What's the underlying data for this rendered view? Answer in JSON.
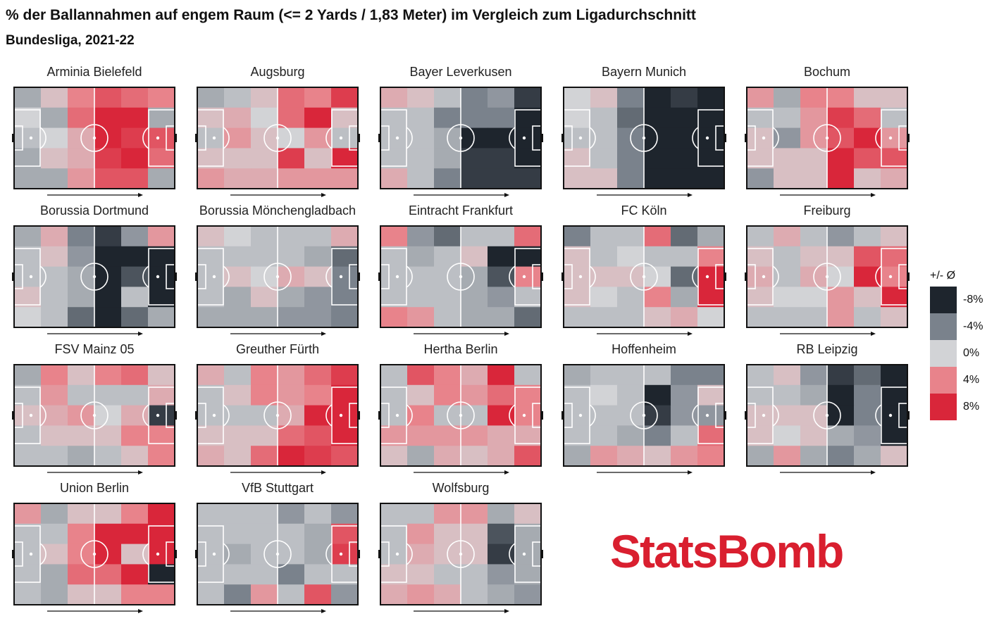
{
  "title": "% der Ballannahmen auf engem Raum (<= 2 Yards / 1,83 Meter) im Vergleich zum Ligadurchschnitt",
  "subtitle": "Bundesliga, 2021-22",
  "legend": {
    "title": "+/- Ø",
    "items": [
      {
        "label": "-8%",
        "value": -8,
        "color": "#1e252d"
      },
      {
        "label": "-4%",
        "value": -4,
        "color": "#7a828c"
      },
      {
        "label": "0%",
        "value": 0,
        "color": "#d2d3d6"
      },
      {
        "label": "4%",
        "value": 4,
        "color": "#e8838b"
      },
      {
        "label": "8%",
        "value": 8,
        "color": "#d9263a"
      }
    ]
  },
  "logo_text": "StatsBomb",
  "chart_data": {
    "type": "heatmap",
    "grid": {
      "columns": 6,
      "rows": 5
    },
    "value_unit": "percentage points vs league average",
    "teams": [
      {
        "name": "Arminia Bielefeld",
        "values": [
          [
            -2,
            1,
            4,
            6,
            5,
            4
          ],
          [
            0,
            -2,
            5,
            8,
            8,
            -2
          ],
          [
            -1,
            0,
            2,
            8,
            7,
            6
          ],
          [
            -2,
            1,
            2,
            7,
            8,
            5
          ],
          [
            -2,
            -2,
            3,
            6,
            6,
            -2
          ]
        ]
      },
      {
        "name": "Augsburg",
        "values": [
          [
            -2,
            -1,
            1,
            5,
            4,
            7
          ],
          [
            1,
            2,
            0,
            5,
            8,
            1
          ],
          [
            -1,
            3,
            1,
            0,
            3,
            -1
          ],
          [
            1,
            1,
            1,
            7,
            1,
            8
          ],
          [
            3,
            2,
            2,
            3,
            3,
            3
          ]
        ]
      },
      {
        "name": "Bayer Leverkusen",
        "values": [
          [
            2,
            1,
            -1,
            -4,
            -3,
            -7
          ],
          [
            -1,
            -1,
            -4,
            -4,
            -4,
            -9
          ],
          [
            -1,
            -1,
            -2,
            -8,
            -9,
            -9
          ],
          [
            -1,
            -1,
            -2,
            -7,
            -7,
            -9
          ],
          [
            2,
            -1,
            -4,
            -7,
            -7,
            -7
          ]
        ]
      },
      {
        "name": "Bayern Munich",
        "values": [
          [
            0,
            1,
            -4,
            -9,
            -7,
            -9
          ],
          [
            0,
            -1,
            -5,
            -9,
            -9,
            -9
          ],
          [
            -1,
            -1,
            -4,
            -9,
            -9,
            -9
          ],
          [
            1,
            -1,
            -4,
            -9,
            -9,
            -9
          ],
          [
            1,
            1,
            -4,
            -9,
            -9,
            -9
          ]
        ]
      },
      {
        "name": "Bochum",
        "values": [
          [
            3,
            -2,
            4,
            4,
            1,
            1
          ],
          [
            -1,
            -1,
            3,
            7,
            5,
            -1
          ],
          [
            1,
            -3,
            3,
            6,
            8,
            3
          ],
          [
            1,
            1,
            1,
            8,
            6,
            6
          ],
          [
            -3,
            1,
            1,
            8,
            1,
            2
          ]
        ]
      },
      {
        "name": "Borussia Dortmund",
        "values": [
          [
            -2,
            2,
            -4,
            -7,
            -3,
            3
          ],
          [
            -1,
            1,
            -3,
            -9,
            -9,
            -9
          ],
          [
            -1,
            -1,
            -2,
            -9,
            -6,
            -8
          ],
          [
            1,
            -1,
            -2,
            -9,
            -1,
            -9
          ],
          [
            0,
            -1,
            -5,
            -9,
            -5,
            -2
          ]
        ]
      },
      {
        "name": "Borussia Mönchengladbach",
        "values": [
          [
            1,
            0,
            -1,
            -1,
            -1,
            2
          ],
          [
            -1,
            -1,
            -1,
            -1,
            -2,
            -5
          ],
          [
            -1,
            1,
            0,
            2,
            1,
            -4
          ],
          [
            -1,
            -2,
            1,
            -2,
            -3,
            -4
          ],
          [
            -2,
            -2,
            -2,
            -3,
            -3,
            -4
          ]
        ]
      },
      {
        "name": "Eintracht Frankfurt",
        "values": [
          [
            4,
            -3,
            -5,
            -1,
            -1,
            5
          ],
          [
            -1,
            -2,
            -1,
            1,
            -9,
            -9
          ],
          [
            -1,
            -1,
            -1,
            -2,
            -6,
            4
          ],
          [
            -1,
            -1,
            -1,
            -2,
            -3,
            -1
          ],
          [
            4,
            3,
            -1,
            -2,
            -2,
            -5
          ]
        ]
      },
      {
        "name": "FC Köln",
        "values": [
          [
            -4,
            -1,
            -1,
            5,
            -5,
            -2
          ],
          [
            1,
            -1,
            0,
            -1,
            -1,
            4
          ],
          [
            1,
            1,
            1,
            0,
            -5,
            8
          ],
          [
            1,
            0,
            -1,
            4,
            -2,
            8
          ],
          [
            -1,
            -1,
            -1,
            1,
            2,
            0
          ]
        ]
      },
      {
        "name": "Freiburg",
        "values": [
          [
            -1,
            2,
            -1,
            -3,
            -1,
            1
          ],
          [
            1,
            -1,
            1,
            1,
            6,
            5
          ],
          [
            2,
            -1,
            2,
            0,
            8,
            4
          ],
          [
            1,
            0,
            0,
            3,
            1,
            8
          ],
          [
            -1,
            -1,
            -1,
            3,
            -1,
            1
          ]
        ]
      },
      {
        "name": "FSV Mainz 05",
        "values": [
          [
            -2,
            4,
            1,
            4,
            5,
            1
          ],
          [
            -1,
            3,
            -1,
            -1,
            -1,
            2
          ],
          [
            1,
            2,
            3,
            0,
            2,
            -7
          ],
          [
            -1,
            1,
            1,
            1,
            4,
            4
          ],
          [
            -1,
            -1,
            -2,
            -1,
            1,
            4
          ]
        ]
      },
      {
        "name": "Greuther Fürth",
        "values": [
          [
            2,
            -1,
            4,
            3,
            5,
            7
          ],
          [
            -1,
            1,
            4,
            3,
            4,
            8
          ],
          [
            -1,
            -1,
            -1,
            2,
            8,
            8
          ],
          [
            1,
            1,
            1,
            5,
            6,
            8
          ],
          [
            2,
            1,
            5,
            8,
            7,
            6
          ]
        ]
      },
      {
        "name": "Hertha Berlin",
        "values": [
          [
            -1,
            6,
            4,
            2,
            8,
            -1
          ],
          [
            -1,
            1,
            4,
            3,
            5,
            4
          ],
          [
            -1,
            4,
            -1,
            -1,
            8,
            4
          ],
          [
            3,
            3,
            3,
            3,
            2,
            2
          ],
          [
            1,
            -2,
            2,
            1,
            2,
            6
          ]
        ]
      },
      {
        "name": "Hoffenheim",
        "values": [
          [
            -2,
            -1,
            -1,
            -1,
            -4,
            -4
          ],
          [
            -1,
            0,
            -1,
            -8,
            -3,
            1
          ],
          [
            -1,
            -1,
            -1,
            -7,
            -3,
            -3
          ],
          [
            -1,
            -1,
            -2,
            -4,
            -1,
            5
          ],
          [
            -2,
            3,
            2,
            1,
            3,
            4
          ]
        ]
      },
      {
        "name": "RB Leipzig",
        "values": [
          [
            -1,
            1,
            -3,
            -7,
            -5,
            -9
          ],
          [
            -1,
            -1,
            -2,
            -9,
            -4,
            -9
          ],
          [
            1,
            1,
            1,
            -9,
            -4,
            -9
          ],
          [
            1,
            0,
            1,
            -2,
            -3,
            -9
          ],
          [
            -2,
            3,
            -2,
            -4,
            -2,
            1
          ]
        ]
      },
      {
        "name": "Union Berlin",
        "values": [
          [
            3,
            -2,
            1,
            1,
            4,
            8
          ],
          [
            -1,
            -1,
            4,
            8,
            8,
            8
          ],
          [
            -1,
            1,
            4,
            8,
            1,
            8
          ],
          [
            -1,
            -2,
            5,
            5,
            8,
            -9
          ],
          [
            -1,
            -2,
            1,
            1,
            4,
            4
          ]
        ]
      },
      {
        "name": "VfB Stuttgart",
        "values": [
          [
            -1,
            -1,
            -1,
            -3,
            -1,
            -3
          ],
          [
            -1,
            -1,
            -1,
            -1,
            -2,
            6
          ],
          [
            -1,
            -2,
            -1,
            -1,
            -2,
            7
          ],
          [
            -1,
            -1,
            -1,
            -4,
            -1,
            -1
          ],
          [
            -1,
            -4,
            3,
            -1,
            6,
            -3
          ]
        ]
      },
      {
        "name": "Wolfsburg",
        "values": [
          [
            -1,
            -1,
            3,
            3,
            -2,
            1
          ],
          [
            -1,
            3,
            1,
            1,
            -6,
            -2
          ],
          [
            -1,
            2,
            1,
            1,
            -7,
            -2
          ],
          [
            1,
            1,
            -1,
            -1,
            -3,
            -2
          ],
          [
            2,
            3,
            2,
            -1,
            -2,
            -3
          ]
        ]
      }
    ]
  }
}
